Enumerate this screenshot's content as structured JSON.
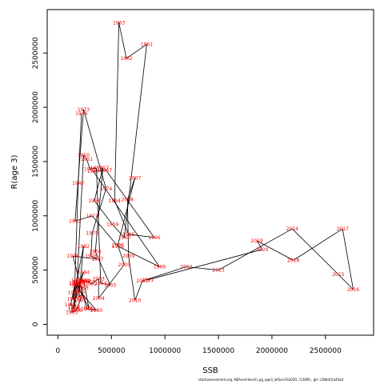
{
  "footnote": "stockassessment.org, NEAcod-bench_pg_age3_allSurvTo2020, r13690 , git: c28bdc2a44ad",
  "chart_data": {
    "type": "line",
    "xlabel": "SSB",
    "ylabel": "R(age 3)",
    "xlim": [
      -100000,
      2950000
    ],
    "ylim": [
      -100000,
      2900000
    ],
    "xticks": [
      0,
      500000,
      1000000,
      1500000,
      2000000,
      2500000
    ],
    "xtick_labels": [
      "0",
      "500000",
      "1000000",
      "1500000",
      "2000000",
      "2500000"
    ],
    "yticks": [
      0,
      500000,
      1000000,
      1500000,
      2000000,
      2500000
    ],
    "ytick_labels": [
      "0",
      "500000",
      "1000000",
      "1500000",
      "2000000",
      "2500000"
    ],
    "grid": false,
    "line_color": "#000000",
    "label_color": "#ff0000",
    "points": [
      {
        "year": "1946",
        "x": 220000,
        "y": 1940000
      },
      {
        "year": "1947",
        "x": 190000,
        "y": 1300000
      },
      {
        "year": "1948",
        "x": 150000,
        "y": 160000
      },
      {
        "year": "1949",
        "x": 180000,
        "y": 410000
      },
      {
        "year": "1950",
        "x": 240000,
        "y": 1560000
      },
      {
        "year": "1951",
        "x": 270000,
        "y": 1520000
      },
      {
        "year": "1952",
        "x": 300000,
        "y": 1430000
      },
      {
        "year": "1953",
        "x": 360000,
        "y": 1440000
      },
      {
        "year": "1954",
        "x": 400000,
        "y": 380000
      },
      {
        "year": "1955",
        "x": 490000,
        "y": 360000
      },
      {
        "year": "1956",
        "x": 350000,
        "y": 670000
      },
      {
        "year": "1957",
        "x": 420000,
        "y": 1440000
      },
      {
        "year": "1958",
        "x": 340000,
        "y": 1140000
      },
      {
        "year": "1959",
        "x": 510000,
        "y": 920000
      },
      {
        "year": "1960",
        "x": 620000,
        "y": 800000
      },
      {
        "year": "1961",
        "x": 830000,
        "y": 2580000
      },
      {
        "year": "1962",
        "x": 640000,
        "y": 2450000
      },
      {
        "year": "1963",
        "x": 570000,
        "y": 2780000
      },
      {
        "year": "1964",
        "x": 530000,
        "y": 1140000
      },
      {
        "year": "1965",
        "x": 660000,
        "y": 830000
      },
      {
        "year": "1966",
        "x": 900000,
        "y": 800000
      },
      {
        "year": "1967",
        "x": 450000,
        "y": 1420000
      },
      {
        "year": "1968",
        "x": 330000,
        "y": 1410000
      },
      {
        "year": "1969",
        "x": 950000,
        "y": 530000
      },
      {
        "year": "1970",
        "x": 560000,
        "y": 720000
      },
      {
        "year": "1971",
        "x": 320000,
        "y": 1000000
      },
      {
        "year": "1972",
        "x": 160000,
        "y": 950000
      },
      {
        "year": "1973",
        "x": 240000,
        "y": 1980000
      },
      {
        "year": "1974",
        "x": 450000,
        "y": 1250000
      },
      {
        "year": "1975",
        "x": 320000,
        "y": 840000
      },
      {
        "year": "1976",
        "x": 310000,
        "y": 630000
      },
      {
        "year": "1977",
        "x": 370000,
        "y": 600000
      },
      {
        "year": "1978",
        "x": 140000,
        "y": 630000
      },
      {
        "year": "1979",
        "x": 270000,
        "y": 140000
      },
      {
        "year": "1980",
        "x": 360000,
        "y": 130000
      },
      {
        "year": "1981",
        "x": 200000,
        "y": 310000
      },
      {
        "year": "1982",
        "x": 240000,
        "y": 720000
      },
      {
        "year": "1983",
        "x": 140000,
        "y": 230000
      },
      {
        "year": "1984",
        "x": 160000,
        "y": 380000
      },
      {
        "year": "1985",
        "x": 120000,
        "y": 180000
      },
      {
        "year": "1986",
        "x": 150000,
        "y": 140000
      },
      {
        "year": "1987",
        "x": 190000,
        "y": 390000
      },
      {
        "year": "1988",
        "x": 200000,
        "y": 250000
      },
      {
        "year": "1989",
        "x": 200000,
        "y": 380000
      },
      {
        "year": "1990",
        "x": 240000,
        "y": 400000
      },
      {
        "year": "1991",
        "x": 290000,
        "y": 150000
      },
      {
        "year": "1992",
        "x": 180000,
        "y": 360000
      },
      {
        "year": "1993",
        "x": 150000,
        "y": 290000
      },
      {
        "year": "1994",
        "x": 240000,
        "y": 480000
      },
      {
        "year": "1995",
        "x": 130000,
        "y": 110000
      },
      {
        "year": "1996",
        "x": 170000,
        "y": 130000
      },
      {
        "year": "1997",
        "x": 210000,
        "y": 220000
      },
      {
        "year": "1998",
        "x": 230000,
        "y": 340000
      },
      {
        "year": "1999",
        "x": 160000,
        "y": 370000
      },
      {
        "year": "2000",
        "x": 250000,
        "y": 400000
      },
      {
        "year": "2001",
        "x": 290000,
        "y": 390000
      },
      {
        "year": "2002",
        "x": 310000,
        "y": 370000
      },
      {
        "year": "2003",
        "x": 380000,
        "y": 420000
      },
      {
        "year": "2004",
        "x": 380000,
        "y": 240000
      },
      {
        "year": "2005",
        "x": 620000,
        "y": 550000
      },
      {
        "year": "2006",
        "x": 560000,
        "y": 730000
      },
      {
        "year": "2007",
        "x": 720000,
        "y": 1350000
      },
      {
        "year": "2008",
        "x": 650000,
        "y": 1150000
      },
      {
        "year": "2009",
        "x": 660000,
        "y": 630000
      },
      {
        "year": "2010",
        "x": 720000,
        "y": 220000
      },
      {
        "year": "2011",
        "x": 790000,
        "y": 400000
      },
      {
        "year": "2012",
        "x": 1200000,
        "y": 530000
      },
      {
        "year": "2013",
        "x": 1500000,
        "y": 500000
      },
      {
        "year": "2014",
        "x": 2190000,
        "y": 880000
      },
      {
        "year": "2015",
        "x": 2620000,
        "y": 460000
      },
      {
        "year": "2016",
        "x": 2760000,
        "y": 320000
      },
      {
        "year": "2017",
        "x": 2660000,
        "y": 880000
      },
      {
        "year": "2018",
        "x": 2200000,
        "y": 590000
      },
      {
        "year": "2019",
        "x": 1860000,
        "y": 770000
      },
      {
        "year": "2020",
        "x": 1910000,
        "y": 690000
      },
      {
        "year": "2021",
        "x": 840000,
        "y": 410000
      }
    ]
  }
}
